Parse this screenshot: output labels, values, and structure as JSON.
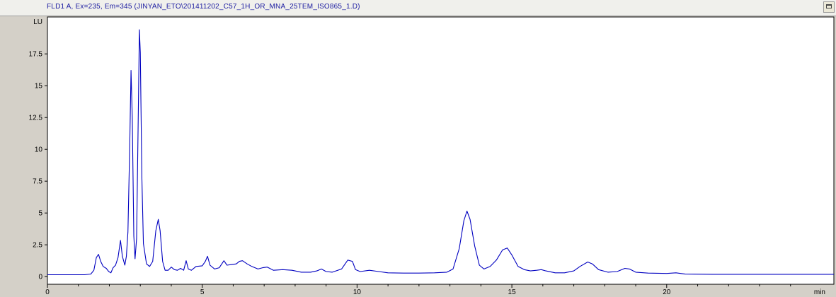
{
  "window": {
    "title": "FLD1 A, Ex=235, Em=345 (JINYAN_ETO\\201411202_C57_1H_OR_MNA_25TEM_ISO865_1.D)"
  },
  "chart_data": {
    "type": "line",
    "ylabel": "LU",
    "xlabel": "min",
    "xlim": [
      0,
      25.4
    ],
    "ylim": [
      -0.6,
      20.4
    ],
    "x_ticks": [
      "0",
      "5",
      "10",
      "15",
      "20"
    ],
    "y_ticks": [
      "0",
      "2.5",
      "5",
      "7.5",
      "10",
      "12.5",
      "15",
      "17.5"
    ],
    "grid": false,
    "series": [
      {
        "color": "#0000c0",
        "points": [
          [
            0,
            0.15
          ],
          [
            1.2,
            0.15
          ],
          [
            1.4,
            0.2
          ],
          [
            1.5,
            0.5
          ],
          [
            1.58,
            1.5
          ],
          [
            1.65,
            1.75
          ],
          [
            1.72,
            1.2
          ],
          [
            1.8,
            0.8
          ],
          [
            1.9,
            0.65
          ],
          [
            1.98,
            0.4
          ],
          [
            2.05,
            0.3
          ],
          [
            2.12,
            0.7
          ],
          [
            2.2,
            0.9
          ],
          [
            2.28,
            1.5
          ],
          [
            2.36,
            2.85
          ],
          [
            2.42,
            1.6
          ],
          [
            2.5,
            0.9
          ],
          [
            2.55,
            1.6
          ],
          [
            2.6,
            3.5
          ],
          [
            2.66,
            10.5
          ],
          [
            2.7,
            16.2
          ],
          [
            2.74,
            12.5
          ],
          [
            2.79,
            3.2
          ],
          [
            2.83,
            1.4
          ],
          [
            2.88,
            3.0
          ],
          [
            2.93,
            12.0
          ],
          [
            2.97,
            19.4
          ],
          [
            3.0,
            17.6
          ],
          [
            3.05,
            7.8
          ],
          [
            3.1,
            2.6
          ],
          [
            3.2,
            1.0
          ],
          [
            3.3,
            0.8
          ],
          [
            3.4,
            1.2
          ],
          [
            3.5,
            3.6
          ],
          [
            3.58,
            4.5
          ],
          [
            3.64,
            3.6
          ],
          [
            3.72,
            1.2
          ],
          [
            3.8,
            0.5
          ],
          [
            3.9,
            0.5
          ],
          [
            4.0,
            0.75
          ],
          [
            4.1,
            0.55
          ],
          [
            4.2,
            0.5
          ],
          [
            4.3,
            0.65
          ],
          [
            4.4,
            0.5
          ],
          [
            4.48,
            1.25
          ],
          [
            4.55,
            0.6
          ],
          [
            4.65,
            0.5
          ],
          [
            4.8,
            0.8
          ],
          [
            5.0,
            0.85
          ],
          [
            5.1,
            1.2
          ],
          [
            5.17,
            1.6
          ],
          [
            5.25,
            0.9
          ],
          [
            5.4,
            0.6
          ],
          [
            5.55,
            0.7
          ],
          [
            5.7,
            1.25
          ],
          [
            5.8,
            0.9
          ],
          [
            5.95,
            0.95
          ],
          [
            6.1,
            1.0
          ],
          [
            6.2,
            1.2
          ],
          [
            6.3,
            1.25
          ],
          [
            6.45,
            1.0
          ],
          [
            6.6,
            0.8
          ],
          [
            6.8,
            0.6
          ],
          [
            6.95,
            0.7
          ],
          [
            7.1,
            0.75
          ],
          [
            7.3,
            0.5
          ],
          [
            7.6,
            0.55
          ],
          [
            7.9,
            0.5
          ],
          [
            8.2,
            0.35
          ],
          [
            8.5,
            0.35
          ],
          [
            8.7,
            0.45
          ],
          [
            8.85,
            0.6
          ],
          [
            9.0,
            0.4
          ],
          [
            9.2,
            0.35
          ],
          [
            9.5,
            0.6
          ],
          [
            9.7,
            1.3
          ],
          [
            9.85,
            1.2
          ],
          [
            9.95,
            0.55
          ],
          [
            10.1,
            0.4
          ],
          [
            10.4,
            0.5
          ],
          [
            10.7,
            0.4
          ],
          [
            11.0,
            0.3
          ],
          [
            11.5,
            0.28
          ],
          [
            12.0,
            0.28
          ],
          [
            12.5,
            0.3
          ],
          [
            12.9,
            0.35
          ],
          [
            13.1,
            0.6
          ],
          [
            13.3,
            2.2
          ],
          [
            13.45,
            4.4
          ],
          [
            13.55,
            5.15
          ],
          [
            13.65,
            4.5
          ],
          [
            13.8,
            2.4
          ],
          [
            13.95,
            0.9
          ],
          [
            14.1,
            0.6
          ],
          [
            14.3,
            0.8
          ],
          [
            14.5,
            1.3
          ],
          [
            14.7,
            2.1
          ],
          [
            14.85,
            2.25
          ],
          [
            15.0,
            1.7
          ],
          [
            15.2,
            0.8
          ],
          [
            15.4,
            0.55
          ],
          [
            15.6,
            0.45
          ],
          [
            15.8,
            0.5
          ],
          [
            15.95,
            0.55
          ],
          [
            16.1,
            0.45
          ],
          [
            16.4,
            0.3
          ],
          [
            16.7,
            0.3
          ],
          [
            17.0,
            0.45
          ],
          [
            17.2,
            0.8
          ],
          [
            17.45,
            1.15
          ],
          [
            17.6,
            1.0
          ],
          [
            17.8,
            0.55
          ],
          [
            18.1,
            0.35
          ],
          [
            18.4,
            0.4
          ],
          [
            18.65,
            0.65
          ],
          [
            18.8,
            0.6
          ],
          [
            19.0,
            0.35
          ],
          [
            19.4,
            0.28
          ],
          [
            20.0,
            0.25
          ],
          [
            20.3,
            0.3
          ],
          [
            20.6,
            0.2
          ],
          [
            21.5,
            0.18
          ],
          [
            25.4,
            0.18
          ]
        ]
      }
    ]
  }
}
